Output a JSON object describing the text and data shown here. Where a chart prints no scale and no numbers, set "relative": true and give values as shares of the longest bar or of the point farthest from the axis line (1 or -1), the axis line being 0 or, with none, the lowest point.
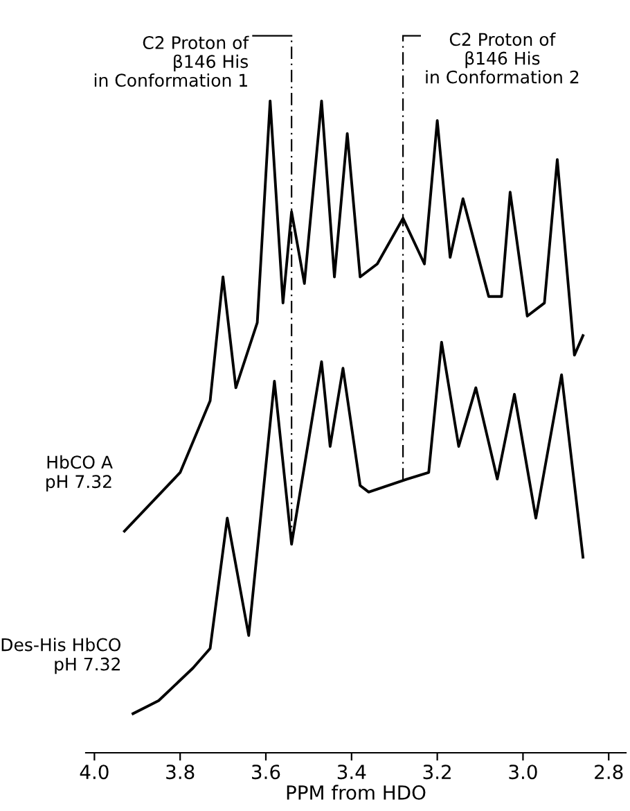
{
  "chart_data": {
    "type": "line",
    "relative": true,
    "xlabel": "PPM from HDO",
    "xlim": [
      4.02,
      2.76
    ],
    "xticks": [
      {
        "value": 4.0,
        "label": "4.0"
      },
      3.8,
      3.6,
      3.4,
      3.2,
      {
        "value": 3.0,
        "label": "3.0"
      },
      2.8
    ],
    "grid": false,
    "legend": false,
    "marker": "none",
    "line_style": "solid",
    "series": [
      {
        "name": "HbCO A\npH 7.32",
        "color": "#000000",
        "x": [
          3.93,
          3.8,
          3.73,
          3.7,
          3.67,
          3.62,
          3.59,
          3.56,
          3.54,
          3.51,
          3.47,
          3.44,
          3.41,
          3.38,
          3.34,
          3.28,
          3.23,
          3.2,
          3.17,
          3.14,
          3.08,
          3.05,
          3.03,
          2.99,
          2.95,
          2.92,
          2.88,
          2.86
        ],
        "values": [
          0.34,
          0.43,
          0.54,
          0.73,
          0.56,
          0.66,
          1.0,
          0.69,
          0.83,
          0.72,
          1.0,
          0.73,
          0.95,
          0.73,
          0.75,
          0.82,
          0.75,
          0.97,
          0.76,
          0.85,
          0.7,
          0.7,
          0.86,
          0.67,
          0.69,
          0.91,
          0.61,
          0.64
        ]
      },
      {
        "name": "Des-His HbCO\npH 7.32",
        "color": "#000000",
        "x": [
          3.91,
          3.85,
          3.77,
          3.73,
          3.69,
          3.64,
          3.58,
          3.54,
          3.47,
          3.45,
          3.42,
          3.38,
          3.36,
          3.27,
          3.22,
          3.19,
          3.15,
          3.11,
          3.06,
          3.02,
          2.97,
          2.91,
          2.86
        ],
        "values": [
          0.06,
          0.08,
          0.13,
          0.16,
          0.36,
          0.18,
          0.57,
          0.32,
          0.6,
          0.47,
          0.59,
          0.41,
          0.4,
          0.42,
          0.43,
          0.63,
          0.47,
          0.56,
          0.42,
          0.55,
          0.36,
          0.58,
          0.3
        ]
      }
    ],
    "ref_lines": [
      {
        "axis": "x",
        "value": 3.54,
        "label": "C2 Proton of\nβ146 His\nin Conformation 1",
        "line_style": "dashed",
        "color": "#000000"
      },
      {
        "axis": "x",
        "value": 3.28,
        "label": "C2 Proton of\nβ146 His\nin Conformation 2",
        "line_style": "dashed",
        "color": "#000000"
      }
    ]
  }
}
